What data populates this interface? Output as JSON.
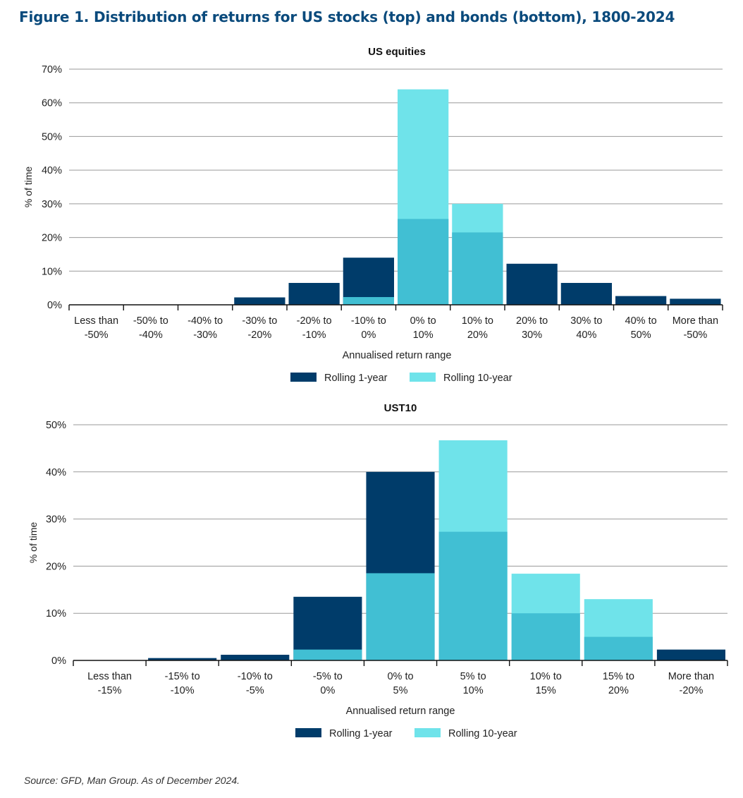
{
  "page": {
    "title": "Figure 1. Distribution of returns for US stocks (top) and bonds (bottom), 1800-2024",
    "source": "Source: GFD, Man Group. As of December 2024."
  },
  "colors": {
    "rolling_1y": "#003c6a",
    "rolling_10y": "#6fe3ea",
    "overlap": "#41bfd3",
    "grid": "#9a9a9a",
    "title": "#0a4a7c"
  },
  "chart_data": [
    {
      "type": "bar",
      "title": "US equities",
      "xlabel": "Annualised return range",
      "ylabel": "% of time",
      "ylim": [
        0,
        70
      ],
      "yticks": [
        0,
        10,
        20,
        30,
        40,
        50,
        60,
        70
      ],
      "ytick_labels": [
        "0%",
        "10%",
        "20%",
        "30%",
        "40%",
        "50%",
        "60%",
        "70%"
      ],
      "categories": [
        [
          "Less than",
          "-50%"
        ],
        [
          "-50% to",
          "-40%"
        ],
        [
          "-40% to",
          "-30%"
        ],
        [
          "-30% to",
          "-20%"
        ],
        [
          "-20% to",
          "-10%"
        ],
        [
          "-10% to",
          "0%"
        ],
        [
          "0% to",
          "10%"
        ],
        [
          "10% to",
          "20%"
        ],
        [
          "20% to",
          "30%"
        ],
        [
          "30% to",
          "40%"
        ],
        [
          "40% to",
          "50%"
        ],
        [
          "More than",
          "-50%"
        ]
      ],
      "series": [
        {
          "name": "Rolling 1-year",
          "values": [
            0,
            0,
            0,
            2.2,
            6.5,
            14,
            25.5,
            21.5,
            12.2,
            6.5,
            2.6,
            1.8
          ]
        },
        {
          "name": "Rolling 10-year",
          "values": [
            0,
            0,
            0,
            0,
            0,
            2.3,
            64,
            30,
            0,
            0,
            0,
            0
          ]
        }
      ],
      "legend": [
        "Rolling 1-year",
        "Rolling 10-year"
      ],
      "legend_position": "bottom-center"
    },
    {
      "type": "bar",
      "title": "UST10",
      "xlabel": "Annualised return range",
      "ylabel": "% of time",
      "ylim": [
        0,
        50
      ],
      "yticks": [
        0,
        10,
        20,
        30,
        40,
        50
      ],
      "ytick_labels": [
        "0%",
        "10%",
        "20%",
        "30%",
        "40%",
        "50%"
      ],
      "categories": [
        [
          "Less than",
          "-15%"
        ],
        [
          "-15% to",
          "-10%"
        ],
        [
          "-10% to",
          "-5%"
        ],
        [
          "-5% to",
          "0%"
        ],
        [
          "0% to",
          "5%"
        ],
        [
          "5% to",
          "10%"
        ],
        [
          "10% to",
          "15%"
        ],
        [
          "15% to",
          "20%"
        ],
        [
          "More than",
          "-20%"
        ]
      ],
      "series": [
        {
          "name": "Rolling 1-year",
          "values": [
            0,
            0.5,
            1.2,
            13.5,
            40,
            27.3,
            10,
            5,
            2.3
          ]
        },
        {
          "name": "Rolling 10-year",
          "values": [
            0,
            0,
            0,
            2.3,
            18.5,
            46.7,
            18.4,
            13,
            0
          ]
        }
      ],
      "legend": [
        "Rolling 1-year",
        "Rolling 10-year"
      ],
      "legend_position": "bottom-center"
    }
  ]
}
